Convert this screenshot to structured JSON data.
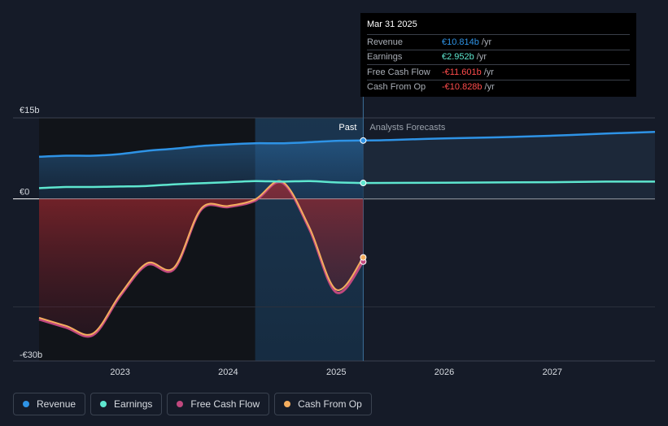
{
  "chart_data": {
    "type": "area",
    "currency": "€",
    "ylim": [
      -30,
      15
    ],
    "y_tick_labels": [
      {
        "value": 15,
        "label": "€15b"
      },
      {
        "value": 0,
        "label": "€0"
      },
      {
        "value": -30,
        "label": "-€30b"
      }
    ],
    "xlim": [
      2022.25,
      2027.95
    ],
    "x_tick_labels": [
      {
        "value": 2023,
        "label": "2023"
      },
      {
        "value": 2024,
        "label": "2024"
      },
      {
        "value": 2025,
        "label": "2025"
      },
      {
        "value": 2026,
        "label": "2026"
      },
      {
        "value": 2027,
        "label": "2027"
      }
    ],
    "divider_x": 2025.25,
    "highlight_start_x": 2024.25,
    "past_label": "Past",
    "forecast_label": "Analysts Forecasts",
    "series": [
      {
        "name": "Revenue",
        "color": "#2e93e6",
        "points": [
          [
            2022.25,
            7.8
          ],
          [
            2022.5,
            8.0
          ],
          [
            2022.75,
            8.0
          ],
          [
            2023.0,
            8.3
          ],
          [
            2023.25,
            8.9
          ],
          [
            2023.5,
            9.3
          ],
          [
            2023.75,
            9.8
          ],
          [
            2024.0,
            10.1
          ],
          [
            2024.25,
            10.3
          ],
          [
            2024.5,
            10.3
          ],
          [
            2024.75,
            10.5
          ],
          [
            2025.0,
            10.75
          ],
          [
            2025.25,
            10.814
          ]
        ],
        "forecast": [
          [
            2025.25,
            10.814
          ],
          [
            2025.5,
            10.9
          ],
          [
            2026.0,
            11.2
          ],
          [
            2026.5,
            11.4
          ],
          [
            2027.0,
            11.7
          ],
          [
            2027.5,
            12.1
          ],
          [
            2027.95,
            12.4
          ]
        ]
      },
      {
        "name": "Earnings",
        "color": "#5ee6cf",
        "points": [
          [
            2022.25,
            2.0
          ],
          [
            2022.5,
            2.2
          ],
          [
            2022.75,
            2.2
          ],
          [
            2023.0,
            2.3
          ],
          [
            2023.25,
            2.4
          ],
          [
            2023.5,
            2.7
          ],
          [
            2023.75,
            2.9
          ],
          [
            2024.0,
            3.1
          ],
          [
            2024.25,
            3.3
          ],
          [
            2024.5,
            3.2
          ],
          [
            2024.75,
            3.3
          ],
          [
            2025.0,
            3.05
          ],
          [
            2025.25,
            2.952
          ]
        ],
        "forecast": [
          [
            2025.25,
            2.952
          ],
          [
            2026.0,
            3.0
          ],
          [
            2026.5,
            3.05
          ],
          [
            2027.0,
            3.1
          ],
          [
            2027.5,
            3.2
          ],
          [
            2027.95,
            3.2
          ]
        ]
      },
      {
        "name": "Free Cash Flow",
        "color": "#c0487e",
        "points": [
          [
            2022.25,
            -22.3
          ],
          [
            2022.5,
            -23.8
          ],
          [
            2022.75,
            -25.2
          ],
          [
            2023.0,
            -18.0
          ],
          [
            2023.25,
            -12.2
          ],
          [
            2023.5,
            -13.0
          ],
          [
            2023.75,
            -2.0
          ],
          [
            2024.0,
            -1.5
          ],
          [
            2024.25,
            -0.3
          ],
          [
            2024.5,
            3.0
          ],
          [
            2024.75,
            -5.5
          ],
          [
            2025.0,
            -17.3
          ],
          [
            2025.25,
            -11.601
          ]
        ]
      },
      {
        "name": "Cash From Op",
        "color": "#f4ad5e",
        "points": [
          [
            2022.25,
            -22.0
          ],
          [
            2022.5,
            -23.5
          ],
          [
            2022.75,
            -24.9
          ],
          [
            2023.0,
            -17.7
          ],
          [
            2023.25,
            -11.9
          ],
          [
            2023.5,
            -12.7
          ],
          [
            2023.75,
            -1.8
          ],
          [
            2024.0,
            -1.3
          ],
          [
            2024.25,
            -0.1
          ],
          [
            2024.5,
            3.2
          ],
          [
            2024.75,
            -5.2
          ],
          [
            2025.0,
            -16.8
          ],
          [
            2025.25,
            -10.828
          ]
        ]
      }
    ]
  },
  "tooltip": {
    "date": "Mar 31 2025",
    "rows": [
      {
        "label": "Revenue",
        "value": "€10.814b",
        "unit": "/yr",
        "color": "#2e93e6"
      },
      {
        "label": "Earnings",
        "value": "€2.952b",
        "unit": "/yr",
        "color": "#5ee6cf"
      },
      {
        "label": "Free Cash Flow",
        "value": "-€11.601b",
        "unit": "/yr",
        "color": "#ff4c4c"
      },
      {
        "label": "Cash From Op",
        "value": "-€10.828b",
        "unit": "/yr",
        "color": "#ff4c4c"
      }
    ]
  },
  "legend": [
    {
      "label": "Revenue",
      "color": "#2e93e6"
    },
    {
      "label": "Earnings",
      "color": "#5ee6cf"
    },
    {
      "label": "Free Cash Flow",
      "color": "#c0487e"
    },
    {
      "label": "Cash From Op",
      "color": "#f4ad5e"
    }
  ]
}
